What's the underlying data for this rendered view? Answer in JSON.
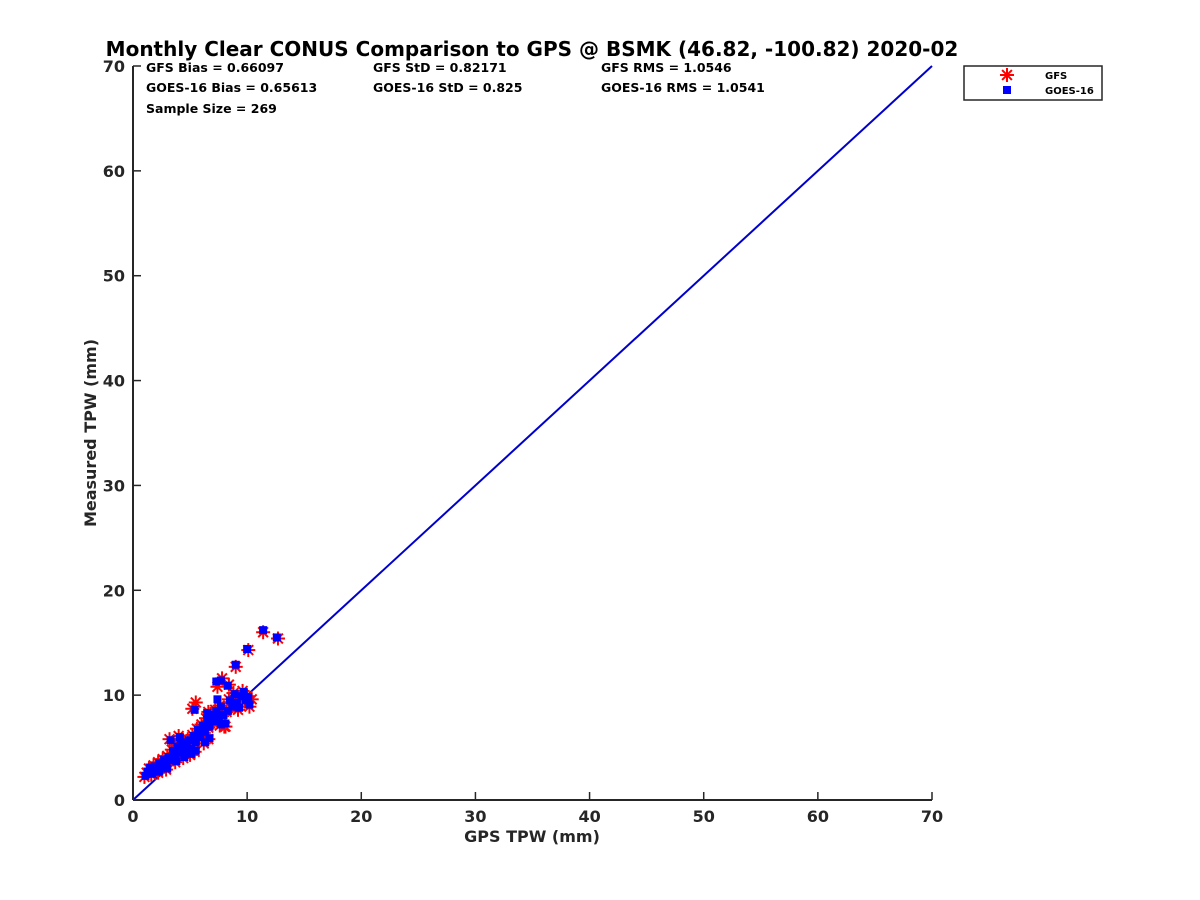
{
  "chart_data": {
    "type": "scatter",
    "title": "Monthly Clear CONUS Comparison to GPS @ BSMK (46.82, -100.82) 2020-02",
    "xlabel": "GPS TPW (mm)",
    "ylabel": "Measured TPW (mm)",
    "xlim": [
      0,
      70
    ],
    "ylim": [
      0,
      70
    ],
    "xticks": [
      "0",
      "10",
      "20",
      "30",
      "40",
      "50",
      "60",
      "70"
    ],
    "yticks": [
      "0",
      "10",
      "20",
      "30",
      "40",
      "50",
      "60",
      "70"
    ],
    "grid": false,
    "legend_position": "top-right",
    "stats": [
      {
        "text": "GFS Bias = 0.66097",
        "col": 0,
        "row": 0
      },
      {
        "text": "GFS StD = 0.82171",
        "col": 1,
        "row": 0
      },
      {
        "text": "GFS RMS = 1.0546",
        "col": 2,
        "row": 0
      },
      {
        "text": "GOES-16 Bias = 0.65613",
        "col": 0,
        "row": 1
      },
      {
        "text": "GOES-16 StD = 0.825",
        "col": 1,
        "row": 1
      },
      {
        "text": "GOES-16 RMS = 1.0541",
        "col": 2,
        "row": 1
      },
      {
        "text": "Sample Size = 269",
        "col": 0,
        "row": 2
      }
    ],
    "reference_line": {
      "x": [
        0,
        70
      ],
      "y": [
        0,
        70
      ],
      "color": "#0000cc"
    },
    "series": [
      {
        "name": "GFS",
        "marker": "asterisk",
        "color": "#ff0000",
        "points": [
          [
            1.0,
            2.2
          ],
          [
            1.2,
            2.6
          ],
          [
            1.4,
            3.0
          ],
          [
            1.6,
            2.4
          ],
          [
            1.8,
            3.3
          ],
          [
            2.0,
            2.8
          ],
          [
            2.2,
            3.6
          ],
          [
            2.4,
            3.1
          ],
          [
            2.6,
            3.9
          ],
          [
            2.8,
            3.4
          ],
          [
            3.0,
            4.2
          ],
          [
            3.2,
            3.7
          ],
          [
            3.4,
            4.8
          ],
          [
            3.6,
            4.1
          ],
          [
            3.8,
            5.2
          ],
          [
            4.0,
            4.4
          ],
          [
            4.2,
            5.6
          ],
          [
            4.4,
            4.6
          ],
          [
            4.6,
            5.0
          ],
          [
            4.8,
            5.8
          ],
          [
            5.0,
            4.8
          ],
          [
            5.2,
            6.2
          ],
          [
            5.4,
            5.4
          ],
          [
            5.6,
            6.8
          ],
          [
            5.8,
            5.9
          ],
          [
            6.0,
            7.2
          ],
          [
            6.2,
            6.4
          ],
          [
            6.4,
            7.8
          ],
          [
            6.6,
            6.9
          ],
          [
            6.8,
            8.2
          ],
          [
            7.0,
            7.4
          ],
          [
            7.2,
            8.6
          ],
          [
            7.4,
            7.8
          ],
          [
            7.6,
            9.0
          ],
          [
            7.8,
            8.0
          ],
          [
            8.0,
            7.0
          ],
          [
            8.2,
            8.4
          ],
          [
            8.4,
            9.6
          ],
          [
            8.6,
            8.8
          ],
          [
            8.8,
            10.2
          ],
          [
            9.0,
            9.2
          ],
          [
            9.2,
            8.6
          ],
          [
            9.4,
            9.8
          ],
          [
            9.6,
            10.4
          ],
          [
            9.8,
            9.4
          ],
          [
            10.0,
            9.9
          ],
          [
            10.2,
            8.9
          ],
          [
            10.4,
            9.6
          ],
          [
            3.2,
            5.8
          ],
          [
            4.0,
            6.1
          ],
          [
            5.5,
            9.3
          ],
          [
            5.2,
            8.7
          ],
          [
            7.4,
            10.8
          ],
          [
            7.8,
            11.6
          ],
          [
            8.4,
            11.0
          ],
          [
            9.0,
            12.7
          ],
          [
            10.1,
            14.3
          ],
          [
            11.4,
            16.0
          ],
          [
            12.7,
            15.4
          ],
          [
            6.6,
            8.4
          ],
          [
            4.4,
            4.0
          ],
          [
            5.0,
            4.3
          ],
          [
            5.4,
            4.6
          ],
          [
            6.2,
            5.4
          ],
          [
            6.6,
            5.8
          ],
          [
            7.6,
            7.1
          ],
          [
            8.1,
            7.0
          ],
          [
            3.7,
            3.6
          ],
          [
            2.9,
            2.9
          ],
          [
            2.2,
            2.6
          ]
        ]
      },
      {
        "name": "GOES-16",
        "marker": "square",
        "color": "#0000ff",
        "points": [
          [
            1.1,
            2.3
          ],
          [
            1.3,
            2.7
          ],
          [
            1.5,
            3.1
          ],
          [
            1.7,
            2.5
          ],
          [
            1.9,
            3.2
          ],
          [
            2.1,
            2.9
          ],
          [
            2.3,
            3.5
          ],
          [
            2.5,
            3.2
          ],
          [
            2.7,
            3.8
          ],
          [
            2.9,
            3.5
          ],
          [
            3.1,
            4.1
          ],
          [
            3.3,
            3.8
          ],
          [
            3.5,
            4.7
          ],
          [
            3.7,
            4.2
          ],
          [
            3.9,
            5.1
          ],
          [
            4.1,
            4.5
          ],
          [
            4.3,
            5.5
          ],
          [
            4.5,
            4.7
          ],
          [
            4.7,
            5.1
          ],
          [
            4.9,
            5.7
          ],
          [
            5.1,
            4.9
          ],
          [
            5.3,
            6.1
          ],
          [
            5.5,
            5.5
          ],
          [
            5.7,
            6.7
          ],
          [
            5.9,
            6.0
          ],
          [
            6.1,
            7.1
          ],
          [
            6.3,
            6.5
          ],
          [
            6.5,
            7.7
          ],
          [
            6.7,
            7.0
          ],
          [
            6.9,
            8.1
          ],
          [
            7.1,
            7.5
          ],
          [
            7.3,
            8.5
          ],
          [
            7.5,
            7.9
          ],
          [
            7.7,
            8.9
          ],
          [
            7.9,
            8.1
          ],
          [
            8.1,
            7.3
          ],
          [
            8.3,
            8.5
          ],
          [
            8.5,
            9.5
          ],
          [
            8.7,
            8.9
          ],
          [
            8.9,
            10.1
          ],
          [
            9.1,
            9.3
          ],
          [
            9.3,
            8.8
          ],
          [
            9.5,
            9.9
          ],
          [
            9.7,
            10.3
          ],
          [
            9.9,
            9.5
          ],
          [
            10.1,
            9.8
          ],
          [
            10.2,
            9.1
          ],
          [
            3.3,
            5.7
          ],
          [
            4.1,
            6.0
          ],
          [
            5.4,
            8.6
          ],
          [
            7.3,
            11.3
          ],
          [
            7.7,
            11.4
          ],
          [
            8.3,
            10.9
          ],
          [
            9.0,
            12.9
          ],
          [
            10.0,
            14.4
          ],
          [
            11.4,
            16.2
          ],
          [
            12.6,
            15.5
          ],
          [
            6.5,
            8.3
          ],
          [
            7.4,
            9.6
          ],
          [
            4.5,
            4.1
          ],
          [
            5.1,
            4.4
          ],
          [
            5.5,
            4.7
          ],
          [
            6.3,
            5.5
          ],
          [
            6.7,
            5.9
          ],
          [
            7.7,
            7.2
          ],
          [
            3.8,
            3.7
          ],
          [
            3.0,
            3.0
          ],
          [
            2.3,
            2.7
          ],
          [
            4.2,
            5.3
          ],
          [
            5.8,
            6.4
          ]
        ]
      }
    ]
  }
}
